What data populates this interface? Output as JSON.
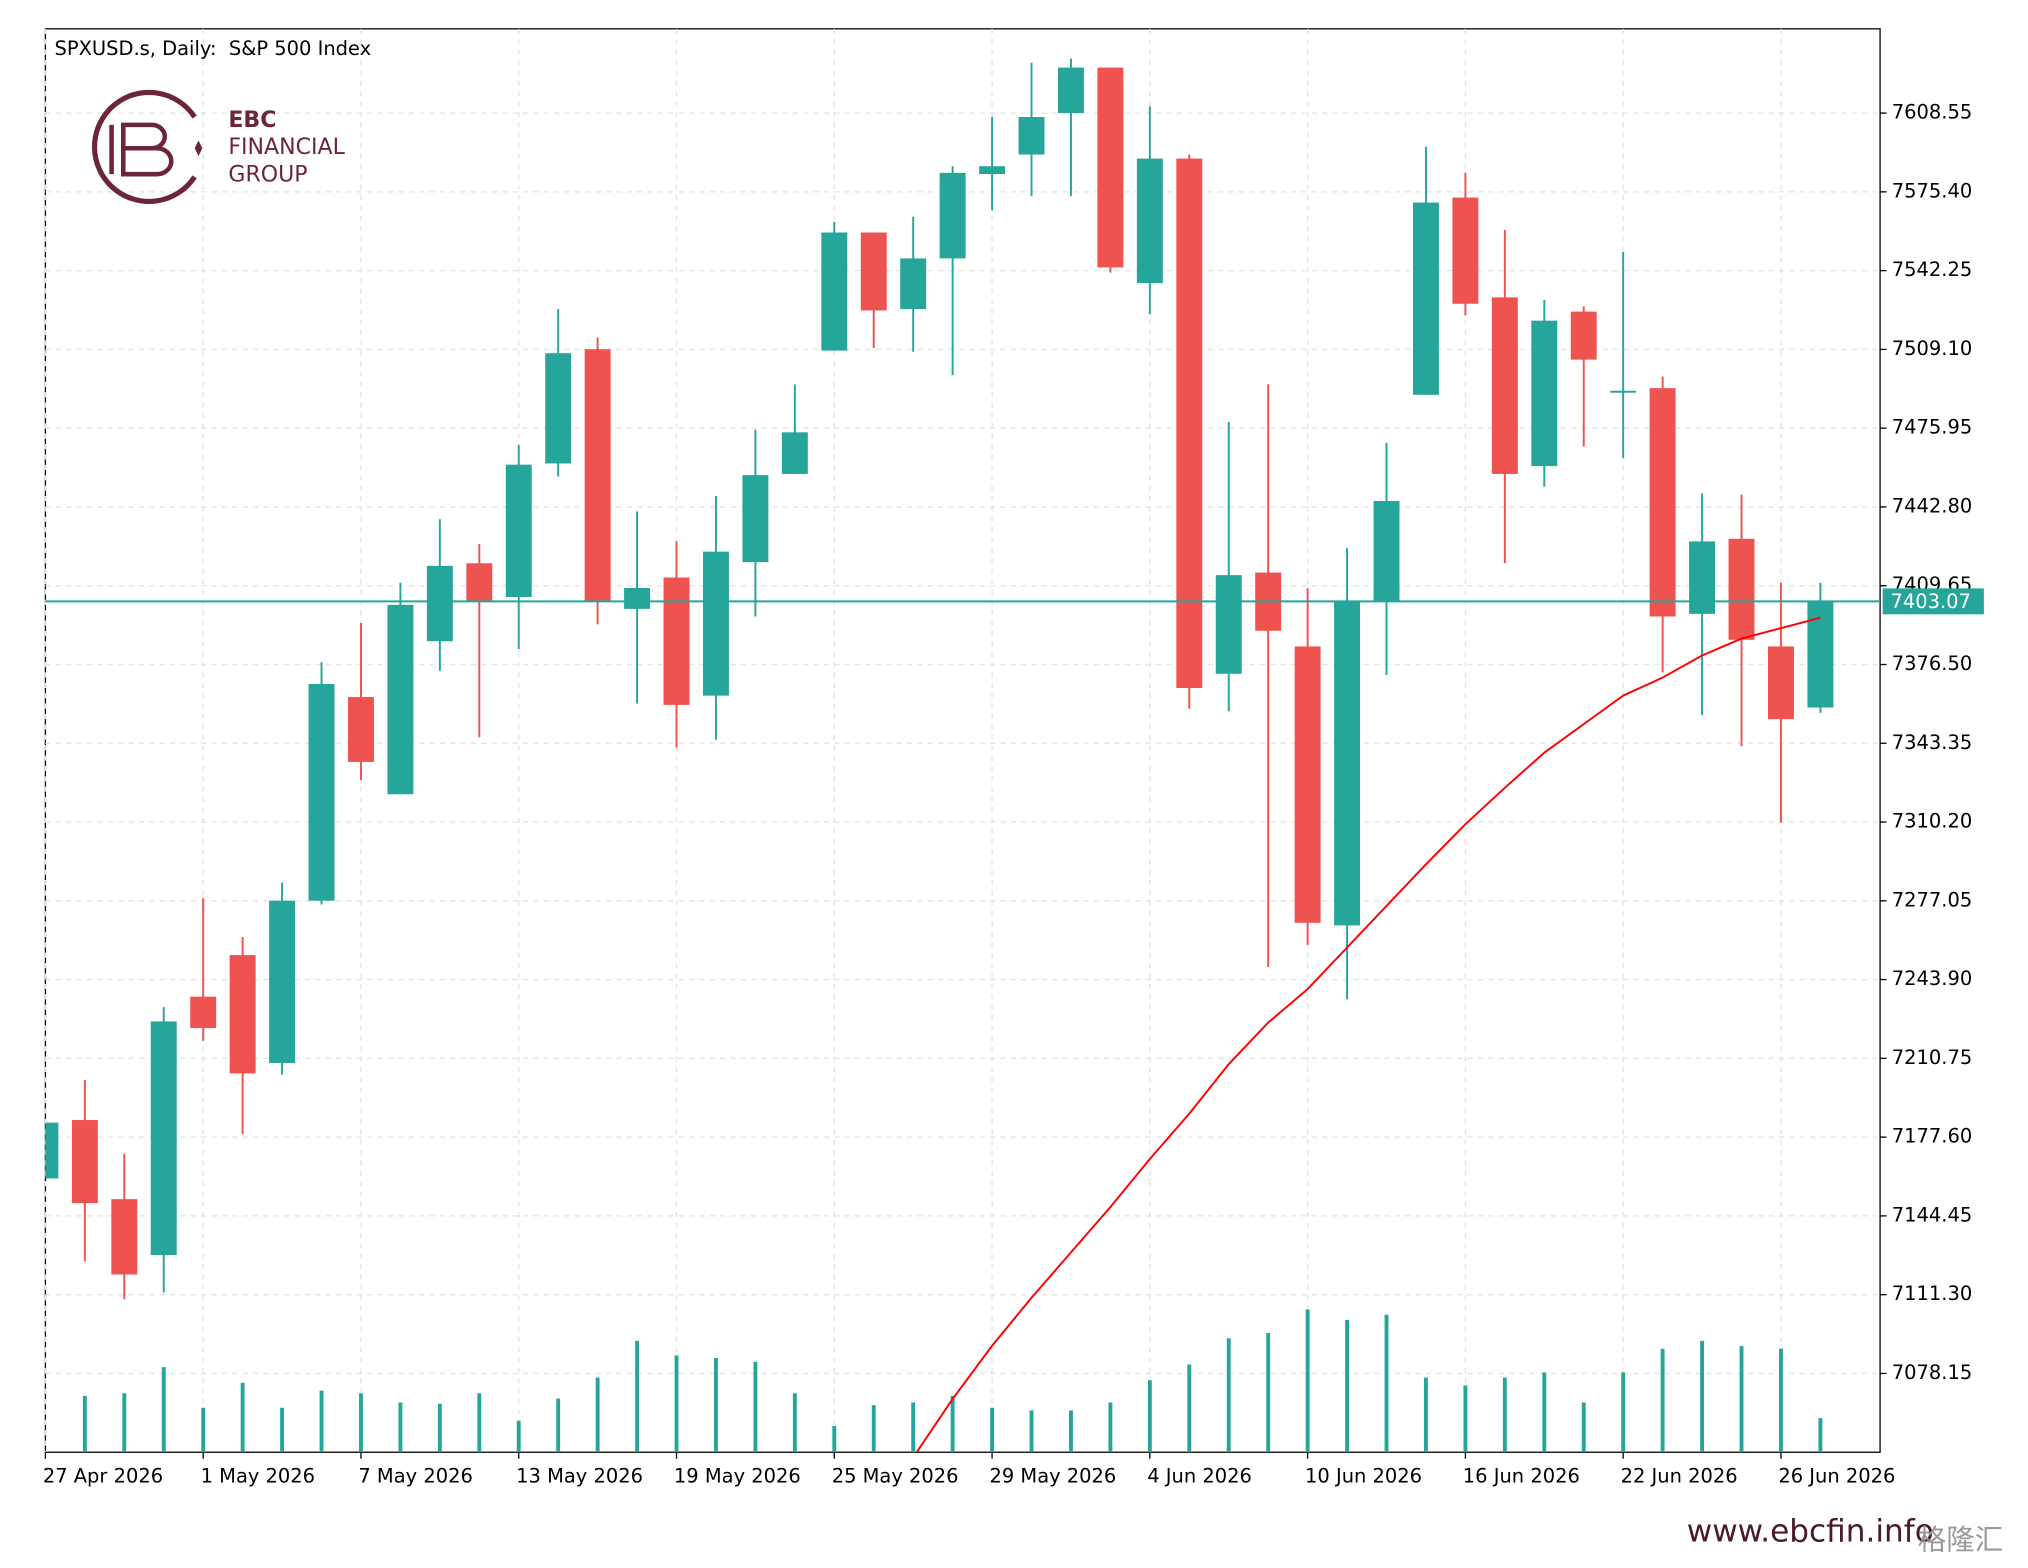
{
  "chart_data": {
    "type": "candlestick",
    "title": "SPXUSD.s, Daily:  S&P 500 Index",
    "categories": [
      "27 Apr 2026",
      null,
      null,
      null,
      "1 May 2026",
      null,
      null,
      null,
      "7 May 2026",
      null,
      null,
      null,
      "13 May 2026",
      null,
      null,
      null,
      "19 May 2026",
      null,
      null,
      null,
      "25 May 2026",
      null,
      null,
      null,
      "29 May 2026",
      null,
      null,
      null,
      "4 Jun 2026",
      null,
      null,
      null,
      "10 Jun 2026",
      null,
      null,
      null,
      "16 Jun 2026",
      null,
      null,
      null,
      "22 Jun 2026",
      null,
      null,
      null,
      "26 Jun 2026",
      null
    ],
    "open": [
      7160.2,
      7184.8,
      7151.5,
      7128.0,
      7236.7,
      7254.2,
      7208.8,
      7277.1,
      7362.8,
      7321.9,
      7386.3,
      7419.1,
      7404.9,
      7461.1,
      7509.2,
      7399.9,
      7413.1,
      7363.4,
      7419.6,
      7456.7,
      7508.6,
      7558.3,
      7526.1,
      7547.4,
      7582.9,
      7591.1,
      7608.55,
      7627.7,
      7537.0,
      7589.4,
      7372.6,
      7415.2,
      7384.1,
      7266.7,
      7403.2,
      7490.0,
      7573.0,
      7531.0,
      7460.0,
      7525.0,
      7491.7,
      7492.8,
      7397.8,
      7429.4,
      7384.1,
      7358.4
    ],
    "high": [
      7183.7,
      7201.7,
      7170.6,
      7232.3,
      7278.2,
      7261.8,
      7284.7,
      7377.5,
      7394.0,
      7410.9,
      7437.6,
      7427.2,
      7468.8,
      7526.1,
      7514.1,
      7440.9,
      7428.3,
      7447.4,
      7475.3,
      7494.4,
      7562.7,
      7558.3,
      7564.9,
      7586.2,
      7606.9,
      7629.8,
      7631.5,
      7627.7,
      7611.3,
      7591.1,
      7478.6,
      7494.4,
      7408.7,
      7425.6,
      7469.8,
      7594.4,
      7583.4,
      7559.4,
      7529.9,
      7527.2,
      7550.1,
      7497.7,
      7448.5,
      7448.0,
      7410.9,
      7410.9
    ],
    "low": [
      7160.2,
      7125.3,
      7109.4,
      7112.2,
      7218.1,
      7178.8,
      7203.9,
      7275.5,
      7327.9,
      7321.9,
      7373.8,
      7345.9,
      7383.0,
      7455.6,
      7393.4,
      7360.1,
      7341.5,
      7344.8,
      7396.7,
      7456.7,
      7508.6,
      7509.7,
      7508.1,
      7498.2,
      7567.6,
      7573.6,
      7573.6,
      7541.4,
      7523.9,
      7357.9,
      7356.8,
      7249.2,
      7258.5,
      7235.6,
      7372.1,
      7490.0,
      7523.4,
      7419.1,
      7451.3,
      7468.2,
      7463.3,
      7373.2,
      7355.2,
      7342.1,
      7309.9,
      7356.2
    ],
    "close": [
      7183.7,
      7149.8,
      7119.8,
      7226.3,
      7223.5,
      7204.4,
      7277.1,
      7368.3,
      7335.5,
      7401.6,
      7418.0,
      7403.2,
      7460.6,
      7507.5,
      7403.2,
      7408.7,
      7359.5,
      7424.0,
      7456.2,
      7474.2,
      7558.3,
      7525.5,
      7547.4,
      7583.4,
      7586.2,
      7606.9,
      7627.7,
      7543.6,
      7589.4,
      7366.6,
      7414.1,
      7390.7,
      7267.8,
      7403.2,
      7445.3,
      7570.9,
      7528.3,
      7456.7,
      7521.2,
      7504.8,
      7491.7,
      7396.7,
      7428.3,
      7386.9,
      7353.5,
      7403.07
    ],
    "up_color": "#26a69a",
    "down_color": "#ef5350",
    "volumes": [
      null,
      43,
      45,
      65,
      34,
      53,
      34,
      47,
      45,
      38,
      37,
      45,
      24,
      41,
      57,
      85,
      74,
      72,
      69,
      45,
      20,
      36,
      38,
      43,
      34,
      32,
      32,
      38,
      55,
      67,
      87,
      91,
      109,
      101,
      105,
      57,
      51,
      57,
      61,
      38,
      61,
      79,
      85,
      81,
      79,
      26
    ],
    "volume_color": "#26a69a",
    "moving_average": {
      "color": "#ff0000",
      "values": [
        null,
        null,
        null,
        null,
        null,
        null,
        null,
        null,
        null,
        null,
        null,
        null,
        null,
        null,
        null,
        null,
        null,
        null,
        null,
        null,
        null,
        null,
        7042.8,
        7067.4,
        7089.8,
        7110.0,
        7129.1,
        7148.2,
        7168.4,
        7187.5,
        7208.3,
        7225.8,
        7239.9,
        7257.4,
        7274.9,
        7292.4,
        7309.3,
        7324.6,
        7339.4,
        7351.4,
        7363.4,
        7371.0,
        7380.3,
        7387.4,
        7391.8,
        7396.2
      ]
    },
    "last_price": 7403.07,
    "last_price_color": "#26a69a",
    "ylim": [
      7045.0,
      7644.0
    ],
    "yticks": [
      7608.55,
      {
        "value": 7575.4,
        "label": "7575.40"
      },
      7542.25,
      {
        "value": 7509.1,
        "label": "7509.10"
      },
      7475.95,
      {
        "value": 7442.8,
        "label": "7442.80"
      },
      7409.65,
      {
        "value": 7376.5,
        "label": "7376.50"
      },
      7343.35,
      {
        "value": 7310.2,
        "label": "7310.20"
      },
      7277.05,
      {
        "value": 7243.9,
        "label": "7243.90"
      },
      7210.75,
      {
        "value": 7177.6,
        "label": "7177.60"
      },
      7144.45,
      {
        "value": 7111.3,
        "label": "7111.30"
      },
      7078.15
    ],
    "grid": true
  },
  "logo": {
    "line1": "EBC",
    "line2": "FINANCIAL",
    "line3": "GROUP"
  },
  "watermark": {
    "url": "www.ebcfin.info",
    "source": "格隆汇"
  }
}
